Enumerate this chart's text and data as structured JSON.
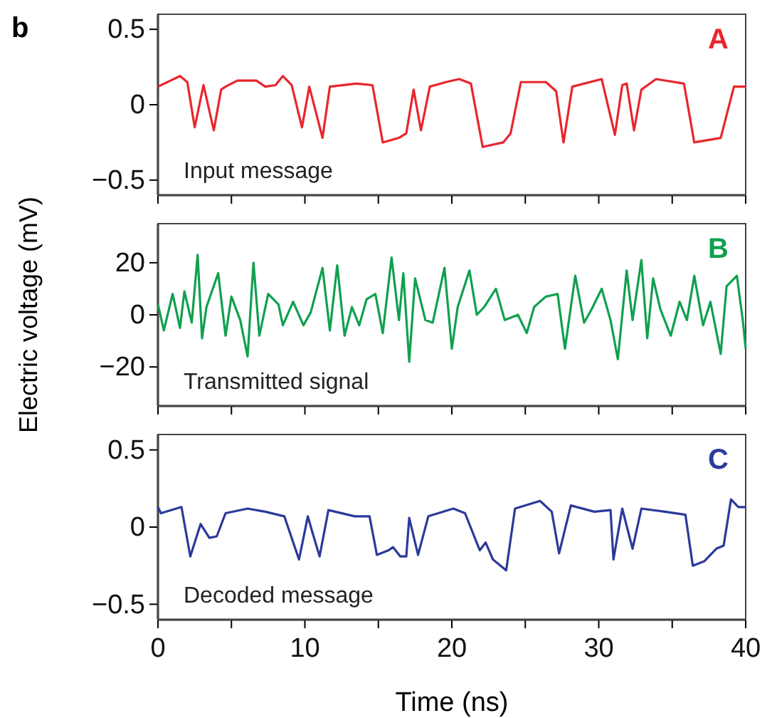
{
  "chart_data": [
    {
      "type": "line",
      "title": "b",
      "annotations": [
        "A",
        "Input message"
      ],
      "tick_labels": "y",
      "xlim": [
        0,
        40
      ],
      "ylim": [
        -0.6,
        0.6
      ],
      "yticks": [
        0.5,
        0,
        -0.5
      ],
      "xticks": [
        0,
        {
          "value": 5,
          "label": null
        },
        10,
        {
          "value": 15,
          "label": null
        },
        20,
        {
          "value": 25,
          "label": null
        },
        30,
        {
          "value": 35,
          "label": null
        },
        40
      ],
      "series": [
        {
          "color": "#e8262d",
          "x": [
            0,
            1.5,
            2.0,
            2.5,
            3.1,
            3.8,
            4.3,
            4.6,
            5.4,
            6.7,
            7.3,
            8.0,
            8.5,
            9.1,
            9.8,
            10.3,
            11.2,
            11.7,
            13.5,
            14.6,
            15.3,
            16.4,
            16.9,
            17.4,
            17.9,
            18.5,
            19.6,
            20.5,
            21.3,
            22.1,
            23.5,
            24.0,
            24.7,
            26.4,
            27.1,
            27.6,
            28.2,
            30.2,
            31.1,
            31.6,
            31.9,
            32.4,
            32.9,
            33.9,
            35.8,
            36.5,
            38.3,
            39.2,
            40
          ],
          "values": [
            0.12,
            0.19,
            0.15,
            -0.15,
            0.13,
            -0.17,
            0.1,
            0.12,
            0.16,
            0.16,
            0.12,
            0.13,
            0.19,
            0.13,
            -0.15,
            0.12,
            -0.22,
            0.12,
            0.14,
            0.13,
            -0.25,
            -0.22,
            -0.19,
            0.1,
            -0.17,
            0.12,
            0.15,
            0.17,
            0.14,
            -0.28,
            -0.25,
            -0.19,
            0.15,
            0.15,
            0.09,
            -0.25,
            0.12,
            0.17,
            -0.2,
            0.13,
            0.14,
            -0.17,
            0.1,
            0.17,
            0.14,
            -0.25,
            -0.22,
            0.12,
            0.12
          ]
        }
      ]
    },
    {
      "type": "line",
      "ylabel": "Electric voltage (mV)",
      "annotations": [
        "B",
        "Transmitted signal"
      ],
      "tick_labels": "y",
      "xlim": [
        0,
        40
      ],
      "ylim": [
        -35,
        35
      ],
      "yticks": [
        20,
        0,
        -20
      ],
      "xticks": [
        0,
        {
          "value": 5,
          "label": null
        },
        10,
        {
          "value": 15,
          "label": null
        },
        20,
        {
          "value": 25,
          "label": null
        },
        30,
        {
          "value": 35,
          "label": null
        },
        40
      ],
      "series": [
        {
          "color": "#10a050",
          "x": [
            0,
            0.4,
            1.0,
            1.5,
            1.8,
            2.3,
            2.7,
            3.0,
            3.3,
            4.1,
            4.6,
            5.0,
            5.6,
            6.1,
            6.5,
            6.9,
            7.5,
            8.2,
            8.5,
            9.2,
            9.9,
            10.4,
            11.2,
            11.7,
            12.2,
            12.7,
            13.2,
            13.7,
            14.2,
            14.8,
            15.3,
            15.9,
            16.4,
            16.7,
            17.1,
            17.5,
            18.2,
            18.7,
            19.5,
            20.0,
            20.4,
            21.2,
            21.7,
            22.2,
            23.0,
            23.6,
            24.5,
            25.1,
            25.6,
            26.4,
            27.2,
            27.7,
            28.4,
            29.0,
            29.5,
            30.2,
            30.8,
            31.3,
            31.9,
            32.3,
            32.9,
            33.3,
            33.7,
            34.2,
            34.9,
            35.5,
            36.0,
            36.5,
            37.1,
            37.6,
            38.3,
            38.7,
            39.4,
            39.8,
            40
          ],
          "values": [
            4,
            -6,
            8,
            -5,
            9,
            -3,
            23,
            -9,
            3,
            16,
            -8,
            7,
            -2,
            -16,
            20,
            -8,
            8,
            4,
            -4,
            5,
            -4,
            1,
            18,
            -6,
            19,
            -8,
            3,
            -4,
            6,
            8,
            -7,
            22,
            -2,
            16,
            -18,
            14,
            -2,
            -3,
            18,
            -13,
            3,
            17,
            0,
            3,
            10,
            -2,
            0,
            -7,
            3,
            7,
            8,
            -13,
            15,
            -3,
            2,
            10,
            -2,
            -17,
            17,
            -2,
            21,
            -9,
            14,
            2,
            -8,
            5,
            -2,
            15,
            -4,
            5,
            -15,
            11,
            15,
            -2,
            -13
          ]
        }
      ]
    },
    {
      "type": "line",
      "xlabel": "Time (ns)",
      "annotations": [
        "C",
        "Decoded message"
      ],
      "xlim": [
        0,
        40
      ],
      "ylim": [
        -0.6,
        0.6
      ],
      "yticks": [
        0.5,
        0,
        -0.5
      ],
      "xticks": [
        0,
        {
          "value": 5,
          "label": null
        },
        10,
        {
          "value": 15,
          "label": null
        },
        20,
        {
          "value": 25,
          "label": null
        },
        30,
        {
          "value": 35,
          "label": null
        },
        40
      ],
      "series": [
        {
          "color": "#2b3a9a",
          "x": [
            0,
            0.2,
            1.6,
            2.2,
            2.9,
            3.5,
            4.0,
            4.6,
            6.1,
            7.3,
            8.6,
            9.6,
            10.2,
            10.5,
            11.0,
            11.6,
            13.4,
            14.4,
            14.9,
            15.7,
            16.0,
            16.5,
            16.9,
            17.1,
            17.7,
            18.4,
            20.1,
            20.9,
            21.9,
            22.3,
            22.8,
            23.7,
            24.3,
            26.0,
            26.8,
            27.3,
            28.1,
            29.7,
            30.8,
            31.0,
            31.6,
            32.3,
            32.9,
            34.5,
            35.9,
            36.4,
            37.2,
            38.0,
            38.5,
            39.0,
            39.5,
            40
          ],
          "values": [
            0.13,
            0.09,
            0.13,
            -0.19,
            0.02,
            -0.07,
            -0.06,
            0.09,
            0.12,
            0.1,
            0.07,
            -0.21,
            0.07,
            -0.03,
            -0.19,
            0.11,
            0.07,
            0.07,
            -0.18,
            -0.15,
            -0.13,
            -0.19,
            -0.19,
            0.06,
            -0.18,
            0.07,
            0.12,
            0.09,
            -0.15,
            -0.1,
            -0.21,
            -0.28,
            0.12,
            0.17,
            0.1,
            -0.17,
            0.14,
            0.1,
            0.11,
            -0.21,
            0.12,
            -0.14,
            0.12,
            0.1,
            0.08,
            -0.25,
            -0.22,
            -0.14,
            -0.12,
            0.18,
            0.13,
            0.13
          ]
        }
      ]
    }
  ]
}
